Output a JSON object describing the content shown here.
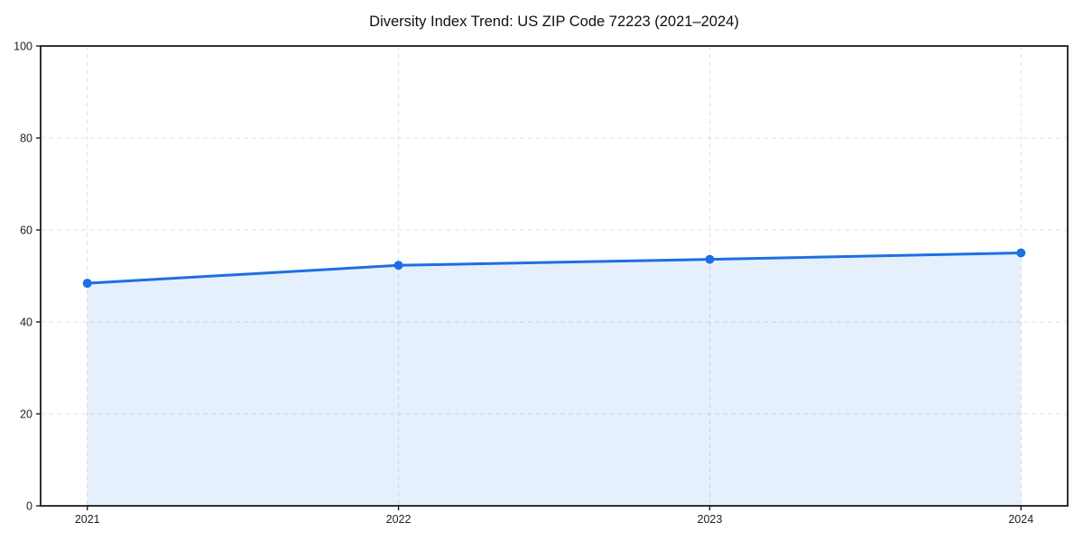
{
  "chart_data": {
    "type": "line",
    "title": "Diversity Index Trend: US ZIP Code 72223 (2021–2024)",
    "x": [
      2021,
      2022,
      2023,
      2024
    ],
    "series": [
      {
        "name": "Diversity Index",
        "values": [
          48.4,
          52.3,
          53.6,
          55.0
        ]
      }
    ],
    "x_tick_labels": [
      "2021",
      "2022",
      "2023",
      "2024"
    ],
    "y_ticks": [
      0,
      20,
      40,
      60,
      80,
      100
    ],
    "y_tick_labels": [
      "0",
      "20",
      "40",
      "60",
      "80",
      "100"
    ],
    "xlim": [
      2020.85,
      2024.15
    ],
    "ylim": [
      0,
      100
    ],
    "xlabel": "",
    "ylabel": "",
    "grid": "dashed-both-axes",
    "legend_position": "none",
    "area_fill": true,
    "markers": "circle",
    "colors": {
      "line": "#1d6fe2",
      "marker": "#1d6fe2",
      "area_fill_rgba": "rgba(29, 111, 224, 0.11)",
      "grid": "#e0e0e0",
      "axis": "#1c1c1c",
      "text": "#1a1a1a",
      "background": "#ffffff"
    }
  }
}
